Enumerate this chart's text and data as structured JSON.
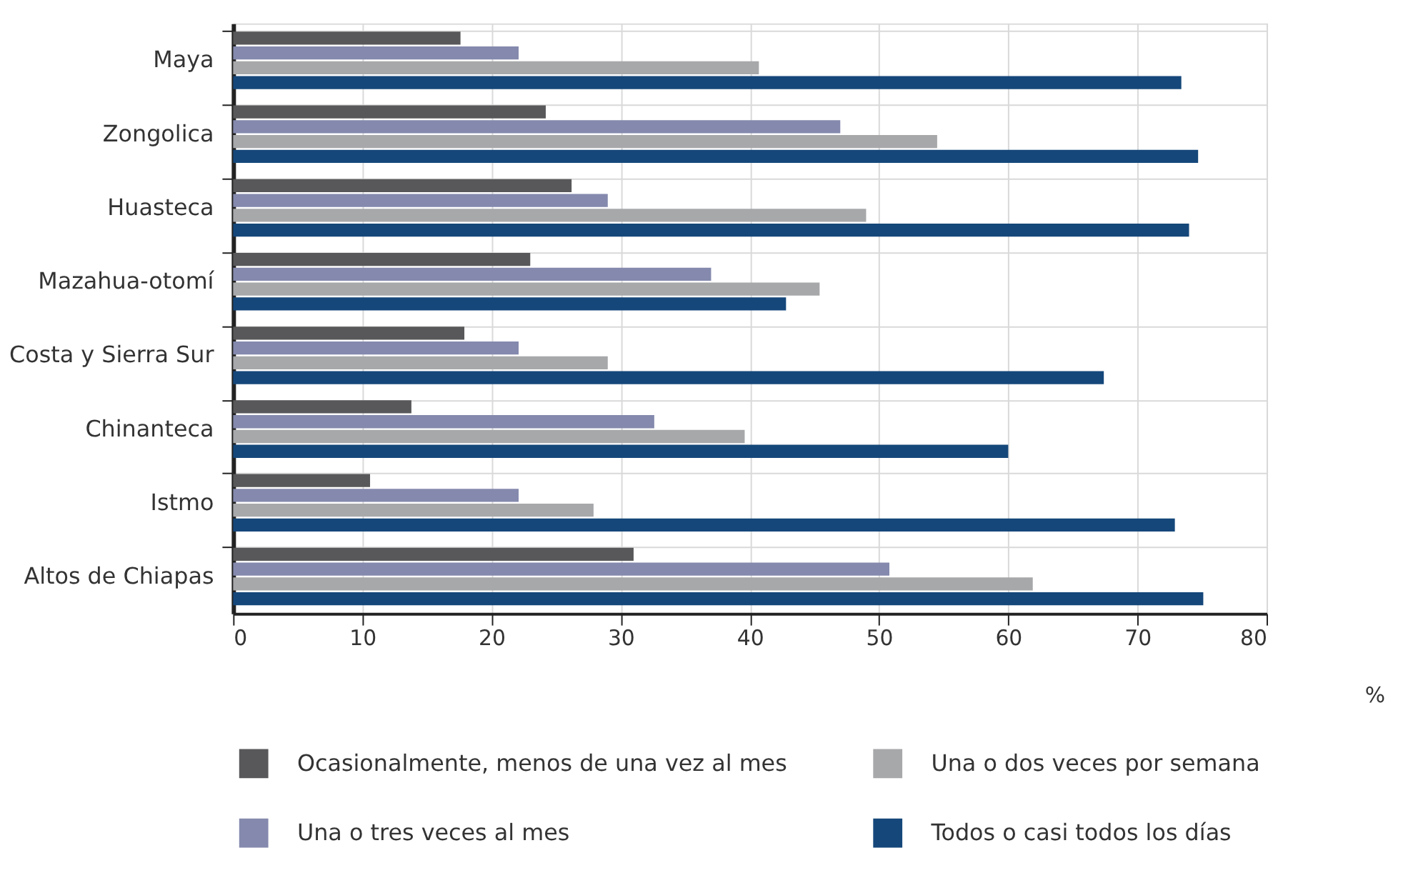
{
  "chart_data": {
    "type": "bar",
    "orientation": "horizontal",
    "xlabel": "%",
    "categories": [
      "Maya",
      "Zongolica",
      "Huasteca",
      "Mazahua-otomí",
      "Costa y Sierra Sur",
      "Chinanteca",
      "Istmo",
      "Altos de Chiapas"
    ],
    "series": [
      {
        "name": "Ocasionalmente, menos de una vez al mes",
        "color": "#58585a",
        "values": [
          17.6,
          24.2,
          26.2,
          23.0,
          17.9,
          13.8,
          10.6,
          31.0
        ]
      },
      {
        "name": "Una o tres veces al mes",
        "color": "#8489ad",
        "values": [
          22.1,
          47.0,
          29.0,
          37.0,
          22.1,
          32.6,
          22.1,
          50.8
        ]
      },
      {
        "name": "Una o dos veces por semana",
        "color": "#a7a8aa",
        "values": [
          40.7,
          54.5,
          49.0,
          45.4,
          29.0,
          39.6,
          27.9,
          61.9
        ]
      },
      {
        "name": "Todos o casi todos los días",
        "color": "#15477a",
        "values": [
          73.4,
          74.7,
          74.0,
          42.8,
          67.4,
          60.0,
          72.9,
          75.1
        ]
      }
    ],
    "xlim": [
      0,
      80
    ],
    "xticks": [
      0,
      10,
      20,
      30,
      40,
      50,
      60,
      70,
      80
    ],
    "grid": true,
    "legend": "bottom"
  }
}
